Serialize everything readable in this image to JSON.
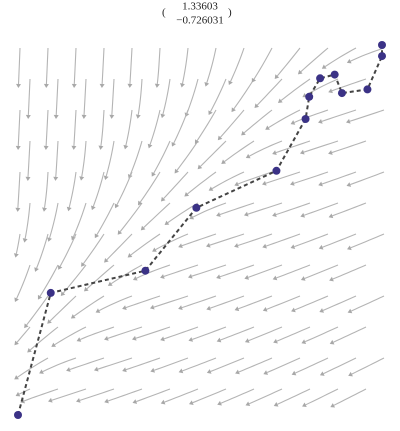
{
  "chart_data": {
    "type": "line",
    "vector": [
      "1.33603",
      "−0.726031"
    ],
    "x": [
      0.0,
      0.09,
      0.35,
      0.49,
      0.71,
      0.79,
      0.8,
      0.83,
      0.87,
      0.89,
      0.96,
      1.0,
      1.0
    ],
    "values": [
      0.0,
      0.33,
      0.39,
      0.56,
      0.66,
      0.8,
      0.86,
      0.91,
      0.92,
      0.87,
      0.88,
      0.97,
      1.0
    ],
    "color": "#3b3286",
    "xlim": [
      0,
      1
    ],
    "ylim": [
      0,
      1
    ]
  }
}
